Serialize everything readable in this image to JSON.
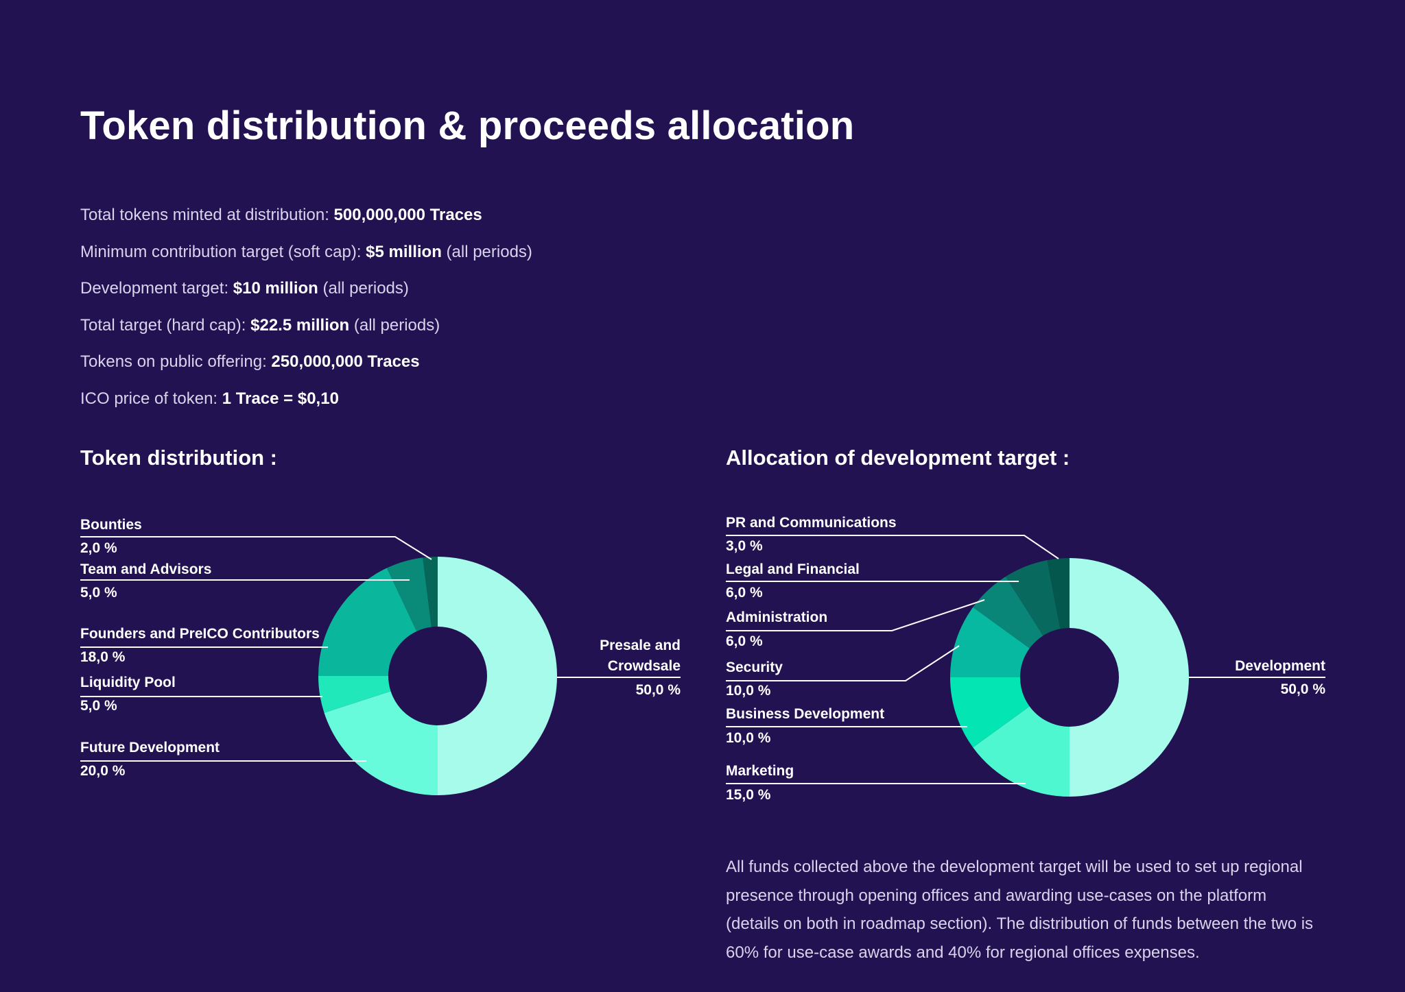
{
  "page_title": "Token distribution & proceeds allocation",
  "facts": [
    {
      "label": "Total tokens minted at distribution: ",
      "value": "500,000,000 Traces",
      "suffix": ""
    },
    {
      "label": "Minimum contribution target (soft cap): ",
      "value": "$5 million",
      "suffix": " (all periods)"
    },
    {
      "label": "Development target: ",
      "value": "$10 million",
      "suffix": " (all periods)"
    },
    {
      "label": "Total target (hard cap): ",
      "value": "$22.5 million",
      "suffix": " (all periods)"
    },
    {
      "label": "Tokens on public offering: ",
      "value": "250,000,000 Traces",
      "suffix": ""
    },
    {
      "label": "ICO price of token: ",
      "value": "1 Trace = $0,10",
      "suffix": ""
    }
  ],
  "chart_data": [
    {
      "type": "pie",
      "donut": true,
      "title": "Token distribution :",
      "slices": [
        {
          "label": "Presale and Crowdsale",
          "label_lines": [
            "Presale and",
            "Crowdsale"
          ],
          "value": 50.0,
          "value_label": "50,0 %",
          "color": "#a6fbea"
        },
        {
          "label": "Future Development",
          "label_lines": [
            "Future Development"
          ],
          "value": 20.0,
          "value_label": "20,0 %",
          "color": "#67fbdb"
        },
        {
          "label": "Liquidity Pool",
          "label_lines": [
            "Liquidity Pool"
          ],
          "value": 5.0,
          "value_label": "5,0 %",
          "color": "#21e8bb"
        },
        {
          "label": "Founders and PreICO Contributors",
          "label_lines": [
            "Founders and PreICO Contributors"
          ],
          "value": 18.0,
          "value_label": "18,0 %",
          "color": "#0bb79c"
        },
        {
          "label": "Team and Advisors",
          "label_lines": [
            "Team and Advisors"
          ],
          "value": 5.0,
          "value_label": "5,0 %",
          "color": "#0a8a78"
        },
        {
          "label": "Bounties",
          "label_lines": [
            "Bounties"
          ],
          "value": 2.0,
          "value_label": "2,0 %",
          "color": "#066658"
        }
      ]
    },
    {
      "type": "pie",
      "donut": true,
      "title": "Allocation of development target :",
      "slices": [
        {
          "label": "Development",
          "label_lines": [
            "Development"
          ],
          "value": 50.0,
          "value_label": "50,0 %",
          "color": "#a6fbea"
        },
        {
          "label": "Marketing",
          "label_lines": [
            "Marketing"
          ],
          "value": 15.0,
          "value_label": "15,0 %",
          "color": "#4ff7d0"
        },
        {
          "label": "Business Development",
          "label_lines": [
            "Business Development"
          ],
          "value": 10.0,
          "value_label": "10,0 %",
          "color": "#03e6b4"
        },
        {
          "label": "Security",
          "label_lines": [
            "Security"
          ],
          "value": 10.0,
          "value_label": "10,0 %",
          "color": "#08b9a2"
        },
        {
          "label": "Administration",
          "label_lines": [
            "Administration"
          ],
          "value": 6.0,
          "value_label": "6,0 %",
          "color": "#0a8679"
        },
        {
          "label": "Legal and Financial",
          "label_lines": [
            "Legal and Financial"
          ],
          "value": 6.0,
          "value_label": "6,0 %",
          "color": "#08695e"
        },
        {
          "label": "PR and Communications",
          "label_lines": [
            "PR and Communications"
          ],
          "value": 3.0,
          "value_label": "3,0 %",
          "color": "#04574c"
        }
      ]
    }
  ],
  "note": "All funds collected above the development target will be used to set up regional presence through opening offices and awarding use-cases on the platform (details on both in roadmap section). The distribution of funds between the two is 60% for use-case awards and 40% for regional offices expenses."
}
